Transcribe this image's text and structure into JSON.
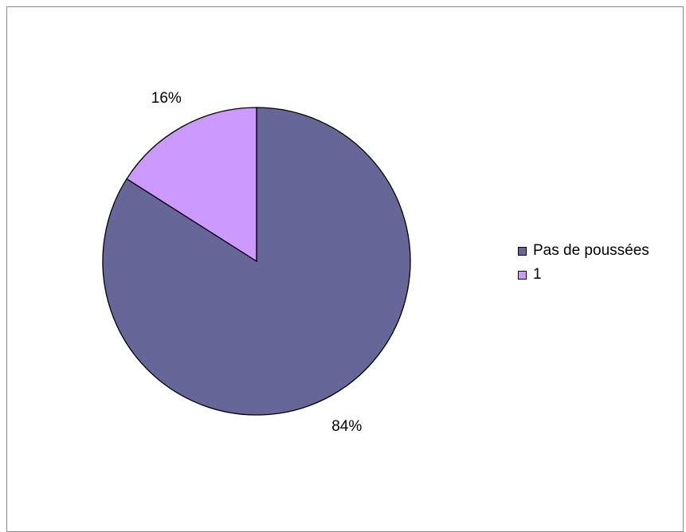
{
  "chart_data": {
    "type": "pie",
    "slices": [
      {
        "label": "Pas de poussées",
        "value": 84,
        "value_label": "84%",
        "color": "#666699"
      },
      {
        "label": "1",
        "value": 16,
        "value_label": "16%",
        "color": "#cc99ff"
      }
    ],
    "title": "",
    "legend_position": "right",
    "start_angle": "12 o'clock",
    "direction": "clockwise"
  }
}
